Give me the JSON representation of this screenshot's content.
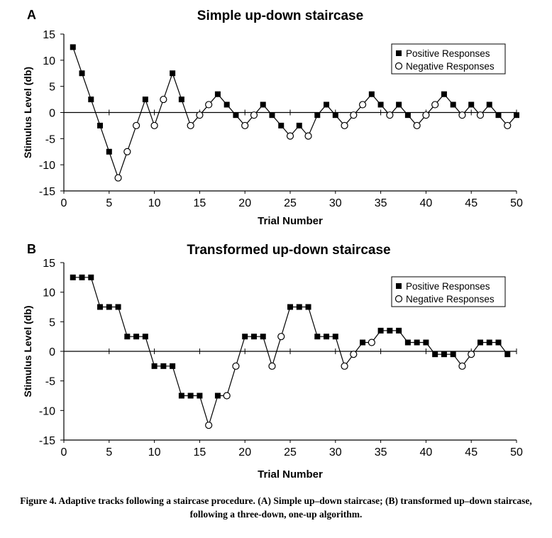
{
  "chart_data": [
    {
      "type": "scatter",
      "panel_label": "A",
      "title": "Simple up-down staircase",
      "xlabel": "Trial Number",
      "ylabel": "Stimulus Level (db)",
      "xlim": [
        0,
        50
      ],
      "ylim": [
        -15,
        15
      ],
      "xticks": [
        0,
        5,
        10,
        15,
        20,
        25,
        30,
        35,
        40,
        45,
        50
      ],
      "yticks": [
        15,
        10,
        5,
        0,
        -5,
        -10,
        -15
      ],
      "grid": false,
      "legend_position": "top-right",
      "series": [
        {
          "name": "Positive Responses",
          "marker": "filled-square"
        },
        {
          "name": "Negative Responses",
          "marker": "open-circle"
        }
      ],
      "points": [
        {
          "x": 1,
          "y": 12.5,
          "r": "positive"
        },
        {
          "x": 2,
          "y": 7.5,
          "r": "positive"
        },
        {
          "x": 3,
          "y": 2.5,
          "r": "positive"
        },
        {
          "x": 4,
          "y": -2.5,
          "r": "positive"
        },
        {
          "x": 5,
          "y": -7.5,
          "r": "positive"
        },
        {
          "x": 6,
          "y": -12.5,
          "r": "negative"
        },
        {
          "x": 7,
          "y": -7.5,
          "r": "negative"
        },
        {
          "x": 8,
          "y": -2.5,
          "r": "negative"
        },
        {
          "x": 9,
          "y": 2.5,
          "r": "positive"
        },
        {
          "x": 10,
          "y": -2.5,
          "r": "negative"
        },
        {
          "x": 11,
          "y": 2.5,
          "r": "negative"
        },
        {
          "x": 12,
          "y": 7.5,
          "r": "positive"
        },
        {
          "x": 13,
          "y": 2.5,
          "r": "positive"
        },
        {
          "x": 14,
          "y": -2.5,
          "r": "negative"
        },
        {
          "x": 15,
          "y": -0.5,
          "r": "negative"
        },
        {
          "x": 16,
          "y": 1.5,
          "r": "negative"
        },
        {
          "x": 17,
          "y": 3.5,
          "r": "positive"
        },
        {
          "x": 18,
          "y": 1.5,
          "r": "positive"
        },
        {
          "x": 19,
          "y": -0.5,
          "r": "positive"
        },
        {
          "x": 20,
          "y": -2.5,
          "r": "negative"
        },
        {
          "x": 21,
          "y": -0.5,
          "r": "negative"
        },
        {
          "x": 22,
          "y": 1.5,
          "r": "positive"
        },
        {
          "x": 23,
          "y": -0.5,
          "r": "positive"
        },
        {
          "x": 24,
          "y": -2.5,
          "r": "positive"
        },
        {
          "x": 25,
          "y": -4.5,
          "r": "negative"
        },
        {
          "x": 26,
          "y": -2.5,
          "r": "positive"
        },
        {
          "x": 27,
          "y": -4.5,
          "r": "negative"
        },
        {
          "x": 28,
          "y": -0.5,
          "r": "positive"
        },
        {
          "x": 29,
          "y": 1.5,
          "r": "positive"
        },
        {
          "x": 30,
          "y": -0.5,
          "r": "positive"
        },
        {
          "x": 31,
          "y": -2.5,
          "r": "negative"
        },
        {
          "x": 32,
          "y": -0.5,
          "r": "negative"
        },
        {
          "x": 33,
          "y": 1.5,
          "r": "negative"
        },
        {
          "x": 34,
          "y": 3.5,
          "r": "positive"
        },
        {
          "x": 35,
          "y": 1.5,
          "r": "positive"
        },
        {
          "x": 36,
          "y": -0.5,
          "r": "negative"
        },
        {
          "x": 37,
          "y": 1.5,
          "r": "positive"
        },
        {
          "x": 38,
          "y": -0.5,
          "r": "positive"
        },
        {
          "x": 39,
          "y": -2.5,
          "r": "negative"
        },
        {
          "x": 40,
          "y": -0.5,
          "r": "negative"
        },
        {
          "x": 41,
          "y": 1.5,
          "r": "negative"
        },
        {
          "x": 42,
          "y": 3.5,
          "r": "positive"
        },
        {
          "x": 43,
          "y": 1.5,
          "r": "positive"
        },
        {
          "x": 44,
          "y": -0.5,
          "r": "negative"
        },
        {
          "x": 45,
          "y": 1.5,
          "r": "positive"
        },
        {
          "x": 46,
          "y": -0.5,
          "r": "negative"
        },
        {
          "x": 47,
          "y": 1.5,
          "r": "positive"
        },
        {
          "x": 48,
          "y": -0.5,
          "r": "positive"
        },
        {
          "x": 49,
          "y": -2.5,
          "r": "negative"
        },
        {
          "x": 50,
          "y": -0.5,
          "r": "positive"
        }
      ]
    },
    {
      "type": "scatter",
      "panel_label": "B",
      "title": "Transformed up-down staircase",
      "xlabel": "Trial Number",
      "ylabel": "Stimulus Level (db)",
      "xlim": [
        0,
        50
      ],
      "ylim": [
        -15,
        15
      ],
      "xticks": [
        0,
        5,
        10,
        15,
        20,
        25,
        30,
        35,
        40,
        45,
        50
      ],
      "yticks": [
        15,
        10,
        5,
        0,
        -5,
        -10,
        -15
      ],
      "grid": false,
      "legend_position": "top-right",
      "series": [
        {
          "name": "Positive Responses",
          "marker": "filled-square"
        },
        {
          "name": "Negative Responses",
          "marker": "open-circle"
        }
      ],
      "points": [
        {
          "x": 1,
          "y": 12.5,
          "r": "positive"
        },
        {
          "x": 2,
          "y": 12.5,
          "r": "positive"
        },
        {
          "x": 3,
          "y": 12.5,
          "r": "positive"
        },
        {
          "x": 4,
          "y": 7.5,
          "r": "positive"
        },
        {
          "x": 5,
          "y": 7.5,
          "r": "positive"
        },
        {
          "x": 6,
          "y": 7.5,
          "r": "positive"
        },
        {
          "x": 7,
          "y": 2.5,
          "r": "positive"
        },
        {
          "x": 8,
          "y": 2.5,
          "r": "positive"
        },
        {
          "x": 9,
          "y": 2.5,
          "r": "positive"
        },
        {
          "x": 10,
          "y": -2.5,
          "r": "positive"
        },
        {
          "x": 11,
          "y": -2.5,
          "r": "positive"
        },
        {
          "x": 12,
          "y": -2.5,
          "r": "positive"
        },
        {
          "x": 13,
          "y": -7.5,
          "r": "positive"
        },
        {
          "x": 14,
          "y": -7.5,
          "r": "positive"
        },
        {
          "x": 15,
          "y": -7.5,
          "r": "positive"
        },
        {
          "x": 16,
          "y": -12.5,
          "r": "negative"
        },
        {
          "x": 17,
          "y": -7.5,
          "r": "positive"
        },
        {
          "x": 18,
          "y": -7.5,
          "r": "negative"
        },
        {
          "x": 19,
          "y": -2.5,
          "r": "negative"
        },
        {
          "x": 20,
          "y": 2.5,
          "r": "positive"
        },
        {
          "x": 21,
          "y": 2.5,
          "r": "positive"
        },
        {
          "x": 22,
          "y": 2.5,
          "r": "positive"
        },
        {
          "x": 23,
          "y": -2.5,
          "r": "negative"
        },
        {
          "x": 24,
          "y": 2.5,
          "r": "negative"
        },
        {
          "x": 25,
          "y": 7.5,
          "r": "positive"
        },
        {
          "x": 26,
          "y": 7.5,
          "r": "positive"
        },
        {
          "x": 27,
          "y": 7.5,
          "r": "positive"
        },
        {
          "x": 28,
          "y": 2.5,
          "r": "positive"
        },
        {
          "x": 29,
          "y": 2.5,
          "r": "positive"
        },
        {
          "x": 30,
          "y": 2.5,
          "r": "positive"
        },
        {
          "x": 31,
          "y": -2.5,
          "r": "negative"
        },
        {
          "x": 32,
          "y": -0.5,
          "r": "negative"
        },
        {
          "x": 33,
          "y": 1.5,
          "r": "positive"
        },
        {
          "x": 34,
          "y": 1.5,
          "r": "negative"
        },
        {
          "x": 35,
          "y": 3.5,
          "r": "positive"
        },
        {
          "x": 36,
          "y": 3.5,
          "r": "positive"
        },
        {
          "x": 37,
          "y": 3.5,
          "r": "positive"
        },
        {
          "x": 38,
          "y": 1.5,
          "r": "positive"
        },
        {
          "x": 39,
          "y": 1.5,
          "r": "positive"
        },
        {
          "x": 40,
          "y": 1.5,
          "r": "positive"
        },
        {
          "x": 41,
          "y": -0.5,
          "r": "positive"
        },
        {
          "x": 42,
          "y": -0.5,
          "r": "positive"
        },
        {
          "x": 43,
          "y": -0.5,
          "r": "positive"
        },
        {
          "x": 44,
          "y": -2.5,
          "r": "negative"
        },
        {
          "x": 45,
          "y": -0.5,
          "r": "negative"
        },
        {
          "x": 46,
          "y": 1.5,
          "r": "positive"
        },
        {
          "x": 47,
          "y": 1.5,
          "r": "positive"
        },
        {
          "x": 48,
          "y": 1.5,
          "r": "positive"
        },
        {
          "x": 49,
          "y": -0.5,
          "r": "positive"
        }
      ]
    }
  ],
  "caption": "Figure 4. Adaptive tracks following a staircase procedure. (A) Simple up–down staircase; (B) transformed up–down staircase, following a three-down, one-up algorithm."
}
